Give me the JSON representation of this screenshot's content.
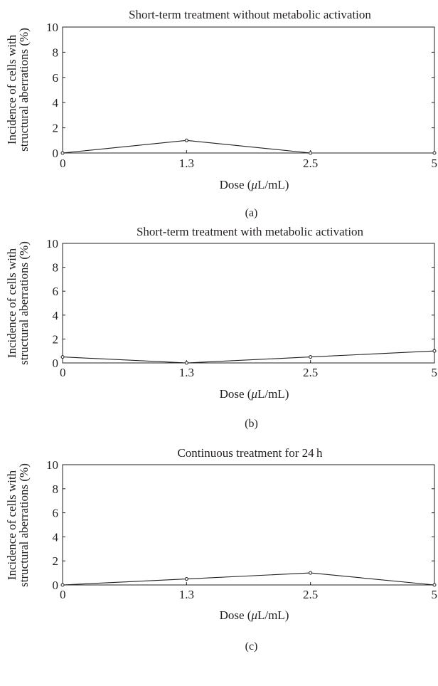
{
  "chart_data": [
    {
      "type": "line",
      "panel_label": "(a)",
      "title": "Short-term treatment without metabolic activation",
      "xlabel": "Dose (μL/mL)",
      "ylabel": [
        "Incidence of cells with",
        "structural aberrations (%)"
      ],
      "x_tick_labels": [
        "0",
        "1.3",
        "2.5",
        "5"
      ],
      "y_tick_labels": [
        "0",
        "2",
        "4",
        "6",
        "8",
        "10"
      ],
      "ylim": [
        0,
        10
      ],
      "x_axis": "categorical (equally spaced)",
      "grid": false,
      "x": [
        "0",
        "1.3",
        "2.5",
        "5"
      ],
      "values": [
        0,
        1,
        0,
        0
      ]
    },
    {
      "type": "line",
      "panel_label": "(b)",
      "title": "Short-term treatment with metabolic activation",
      "xlabel": "Dose (μL/mL)",
      "ylabel": [
        "Incidence of cells with",
        "structural aberrations (%)"
      ],
      "x_tick_labels": [
        "0",
        "1.3",
        "2.5",
        "5"
      ],
      "y_tick_labels": [
        "0",
        "2",
        "4",
        "6",
        "8",
        "10"
      ],
      "ylim": [
        0,
        10
      ],
      "x_axis": "categorical (equally spaced)",
      "grid": false,
      "x": [
        "0",
        "1.3",
        "2.5",
        "5"
      ],
      "values": [
        0.5,
        0,
        0.5,
        1
      ]
    },
    {
      "type": "line",
      "panel_label": "(c)",
      "title": "Continuous treatment for 24 h",
      "xlabel": "Dose (μL/mL)",
      "ylabel": [
        "Incidence of cells with",
        "structural aberrations (%)"
      ],
      "x_tick_labels": [
        "0",
        "1.3",
        "2.5",
        "5"
      ],
      "y_tick_labels": [
        "0",
        "2",
        "4",
        "6",
        "8",
        "10"
      ],
      "ylim": [
        0,
        10
      ],
      "x_axis": "categorical (equally spaced)",
      "grid": false,
      "x": [
        "0",
        "1.3",
        "2.5",
        "5"
      ],
      "values": [
        0,
        0.5,
        1,
        0
      ]
    }
  ]
}
